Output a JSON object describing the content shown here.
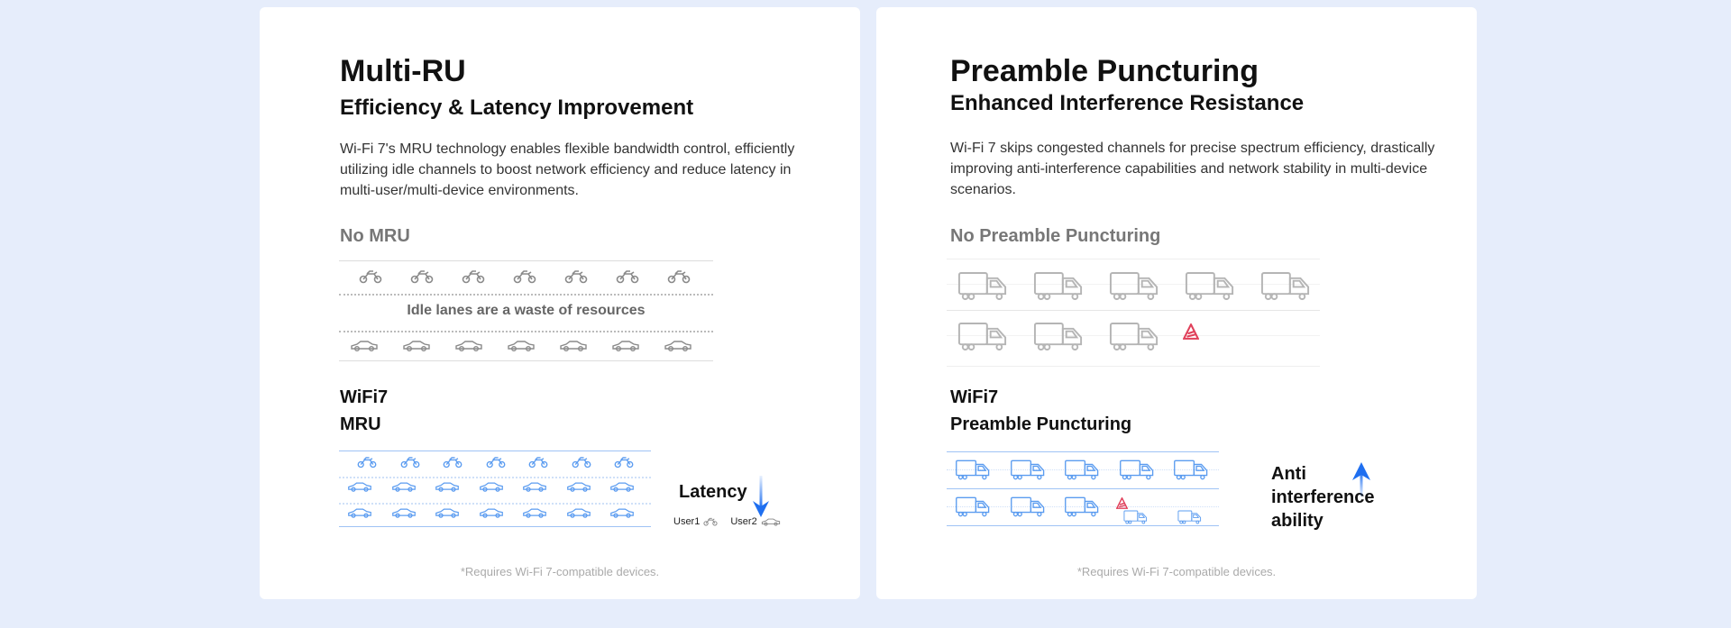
{
  "cards": [
    {
      "title": "Multi-RU",
      "subtitle": "Efficiency & Latency Improvement",
      "description": "Wi-Fi 7's MRU technology enables flexible bandwidth control, efficiently utilizing idle channels to boost network efficiency and reduce latency in multi-user/multi-device environments.",
      "before_label": "No MRU",
      "idle_text": "Idle lanes are a waste of resources",
      "after_label_line1": "WiFi7",
      "after_label_line2": "MRU",
      "metric_label": "Latency",
      "metric_direction": "down",
      "legend": [
        {
          "label": "User1",
          "icon": "motorcycle-icon"
        },
        {
          "label": "User2",
          "icon": "car-icon"
        }
      ],
      "footnote": "*Requires Wi-Fi 7-compatible devices."
    },
    {
      "title": "Preamble Puncturing",
      "subtitle": "Enhanced Interference Resistance",
      "description": "Wi-Fi 7 skips congested channels for precise spectrum efficiency, drastically improving anti-interference capabilities and network stability in multi-device scenarios.",
      "before_label": "No Preamble Puncturing",
      "after_label_line1": "WiFi7",
      "after_label_line2": "Preamble Puncturing",
      "metric_label": "Anti interference ability",
      "metric_direction": "up",
      "footnote": "*Requires Wi-Fi 7-compatible devices."
    }
  ],
  "colors": {
    "accent": "#1f6ff0",
    "icon_gray": "#8a8a8a",
    "icon_blue": "#5b9cf0",
    "warning": "#e0405a",
    "background": "#e6edfb"
  }
}
